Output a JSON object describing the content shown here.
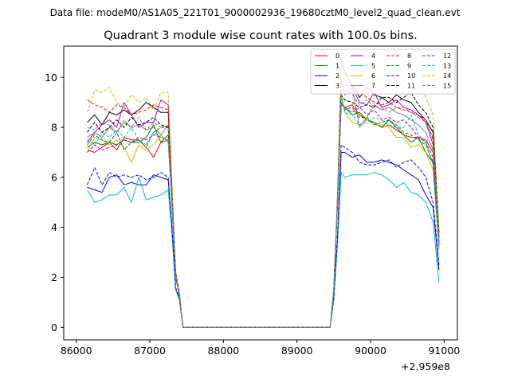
{
  "chart_data": {
    "type": "line",
    "supertitle": "Data file: modeM0/AS1A05_221T01_9000002936_19680cztM0_level2_quad_clean.evt",
    "title": "Quadrant 3 module wise count rates with 100.0s bins.",
    "xlabel": "",
    "ylabel": "",
    "x_offset_label": "+2.959e8",
    "x_ticks": [
      86000,
      87000,
      88000,
      89000,
      90000,
      91000
    ],
    "y_ticks": [
      0,
      2,
      4,
      6,
      8,
      10
    ],
    "xlim": [
      85830,
      91180
    ],
    "ylim": [
      -0.5,
      11.25
    ],
    "legend_loc": "upper right",
    "gaps": [
      [
        87400,
        89450
      ]
    ],
    "x": [
      86150,
      86250,
      86350,
      86450,
      86550,
      86650,
      86750,
      86850,
      86950,
      87050,
      87150,
      87250,
      87300,
      87350,
      87400,
      87450,
      89450,
      89500,
      89550,
      89600,
      89650,
      89750,
      89850,
      89950,
      90050,
      90150,
      90250,
      90350,
      90450,
      90550,
      90650,
      90750,
      90850,
      90930
    ],
    "series": [
      {
        "name": "0",
        "color": "#ff0000",
        "dash": false,
        "values": [
          7.1,
          7.0,
          7.2,
          7.4,
          7.1,
          7.6,
          7.5,
          7.5,
          7.2,
          6.8,
          7.4,
          7.5,
          5.0,
          2.0,
          1.3,
          0,
          0,
          1.5,
          5.0,
          8.9,
          8.8,
          8.9,
          8.5,
          8.3,
          8.2,
          8.0,
          8.1,
          7.9,
          7.7,
          7.6,
          7.6,
          7.5,
          7.0,
          3.3
        ]
      },
      {
        "name": "1",
        "color": "#008000",
        "dash": false,
        "values": [
          7.2,
          7.4,
          7.3,
          7.4,
          7.3,
          7.5,
          7.4,
          7.4,
          7.6,
          8.1,
          7.4,
          7.7,
          5.0,
          2.0,
          1.3,
          0,
          0,
          1.5,
          5.0,
          9.0,
          8.8,
          8.5,
          8.6,
          8.3,
          8.2,
          8.0,
          8.3,
          8.0,
          7.7,
          7.4,
          7.6,
          7.0,
          6.6,
          3.3
        ]
      },
      {
        "name": "2",
        "color": "#0000ff",
        "dash": false,
        "values": [
          5.6,
          5.5,
          5.4,
          6.0,
          6.1,
          5.7,
          5.8,
          5.7,
          5.7,
          6.1,
          6.0,
          5.9,
          4.0,
          1.5,
          1.2,
          0,
          0,
          1.2,
          3.5,
          7.0,
          7.0,
          6.8,
          6.9,
          6.6,
          6.6,
          6.7,
          6.6,
          6.5,
          6.3,
          6.1,
          5.9,
          5.3,
          4.8,
          2.3
        ]
      },
      {
        "name": "3",
        "color": "#000000",
        "dash": false,
        "values": [
          8.2,
          8.5,
          8.1,
          8.6,
          8.5,
          8.7,
          8.5,
          8.7,
          9.0,
          8.8,
          8.6,
          8.6,
          5.5,
          2.2,
          1.4,
          0,
          0,
          1.5,
          5.0,
          10.6,
          10.2,
          9.7,
          9.2,
          9.6,
          9.3,
          9.2,
          9.0,
          9.3,
          9.1,
          9.0,
          8.6,
          8.3,
          7.8,
          3.6
        ]
      },
      {
        "name": "4",
        "color": "#bf00bf",
        "dash": false,
        "values": [
          7.4,
          7.8,
          8.1,
          8.3,
          8.0,
          9.0,
          8.5,
          8.0,
          8.2,
          8.2,
          9.1,
          8.9,
          5.5,
          2.2,
          1.4,
          0,
          0,
          1.5,
          5.0,
          9.9,
          9.3,
          9.6,
          9.0,
          8.9,
          9.4,
          8.8,
          8.9,
          9.1,
          8.8,
          8.7,
          8.5,
          8.2,
          7.3,
          3.4
        ]
      },
      {
        "name": "5",
        "color": "#00bfbf",
        "dash": false,
        "values": [
          5.5,
          5.0,
          5.1,
          5.3,
          5.3,
          5.6,
          5.0,
          6.0,
          5.1,
          5.2,
          5.3,
          5.5,
          3.8,
          1.5,
          1.1,
          0,
          0,
          1.1,
          3.3,
          6.2,
          6.0,
          6.1,
          6.1,
          6.1,
          6.2,
          6.1,
          5.9,
          5.6,
          5.8,
          5.4,
          5.3,
          5.0,
          4.2,
          1.8
        ]
      },
      {
        "name": "6",
        "color": "#bfbf00",
        "dash": false,
        "values": [
          7.0,
          7.6,
          7.5,
          7.3,
          7.5,
          7.2,
          6.6,
          7.3,
          7.1,
          7.3,
          7.7,
          7.4,
          5.0,
          2.0,
          1.3,
          0,
          0,
          1.5,
          5.0,
          9.4,
          8.6,
          8.2,
          8.1,
          8.3,
          8.1,
          8.1,
          8.0,
          7.6,
          7.6,
          7.2,
          7.3,
          7.0,
          6.3,
          3.1
        ]
      },
      {
        "name": "7",
        "color": "#808080",
        "dash": false,
        "values": [
          7.6,
          7.8,
          7.6,
          8.0,
          7.8,
          8.2,
          8.0,
          8.1,
          7.9,
          8.0,
          7.7,
          8.1,
          5.3,
          2.1,
          1.3,
          0,
          0,
          1.5,
          5.0,
          10.7,
          10.3,
          9.6,
          8.0,
          8.4,
          8.9,
          8.7,
          8.8,
          8.6,
          8.5,
          8.3,
          8.1,
          7.8,
          7.1,
          3.4
        ]
      },
      {
        "name": "8",
        "color": "#ff0000",
        "dash": true,
        "values": [
          9.1,
          8.9,
          8.8,
          8.6,
          8.9,
          8.8,
          8.5,
          8.6,
          8.7,
          8.9,
          8.8,
          8.7,
          5.6,
          2.2,
          1.4,
          0,
          0,
          1.6,
          5.3,
          9.5,
          9.7,
          9.6,
          9.4,
          9.2,
          9.0,
          8.9,
          9.0,
          8.8,
          8.7,
          8.6,
          8.5,
          8.3,
          7.5,
          3.6
        ]
      },
      {
        "name": "9",
        "color": "#008000",
        "dash": true,
        "values": [
          7.3,
          7.7,
          7.5,
          7.4,
          7.8,
          7.1,
          7.4,
          7.5,
          7.2,
          7.8,
          8.0,
          8.0,
          5.2,
          2.0,
          1.3,
          0,
          0,
          1.5,
          5.0,
          9.2,
          8.7,
          8.8,
          8.4,
          8.4,
          8.1,
          8.2,
          8.3,
          8.1,
          7.8,
          7.7,
          7.5,
          7.3,
          6.6,
          3.2
        ]
      },
      {
        "name": "10",
        "color": "#0000ff",
        "dash": true,
        "values": [
          5.7,
          6.4,
          5.7,
          6.2,
          6.0,
          6.1,
          6.0,
          6.1,
          5.9,
          6.0,
          6.2,
          6.0,
          4.0,
          1.6,
          1.2,
          0,
          0,
          1.2,
          3.6,
          7.3,
          7.2,
          7.0,
          6.6,
          6.5,
          6.5,
          6.6,
          6.7,
          6.4,
          6.6,
          6.7,
          6.4,
          6.0,
          5.0,
          2.5
        ]
      },
      {
        "name": "11",
        "color": "#000000",
        "dash": true,
        "values": [
          7.8,
          8.2,
          7.8,
          8.0,
          8.3,
          8.0,
          8.4,
          8.1,
          8.2,
          8.4,
          8.1,
          8.0,
          5.3,
          2.1,
          1.3,
          0,
          0,
          1.5,
          5.0,
          9.3,
          9.1,
          9.0,
          8.8,
          8.9,
          8.8,
          9.2,
          9.2,
          9.0,
          9.2,
          9.4,
          8.9,
          8.6,
          8.0,
          3.8
        ]
      },
      {
        "name": "12",
        "color": "#bf00bf",
        "dash": true,
        "values": [
          7.0,
          7.3,
          7.1,
          7.2,
          7.3,
          7.5,
          7.4,
          7.6,
          7.5,
          7.7,
          7.6,
          7.5,
          5.0,
          2.0,
          1.3,
          0,
          0,
          1.5,
          5.0,
          9.0,
          8.8,
          8.6,
          8.8,
          8.5,
          8.7,
          8.3,
          8.4,
          8.2,
          8.3,
          8.0,
          7.6,
          7.4,
          6.8,
          3.3
        ]
      },
      {
        "name": "13",
        "color": "#00bfbf",
        "dash": true,
        "values": [
          7.5,
          7.3,
          7.8,
          7.6,
          7.9,
          7.6,
          8.0,
          7.5,
          7.3,
          7.8,
          7.6,
          7.5,
          5.0,
          2.0,
          1.3,
          0,
          0,
          1.5,
          5.0,
          9.3,
          8.6,
          8.5,
          8.1,
          8.2,
          8.4,
          8.3,
          8.1,
          8.0,
          8.0,
          8.5,
          7.7,
          7.4,
          6.5,
          3.2
        ]
      },
      {
        "name": "14",
        "color": "#bfbf00",
        "dash": true,
        "values": [
          8.6,
          9.5,
          9.4,
          9.6,
          9.0,
          8.8,
          9.3,
          9.0,
          9.2,
          8.7,
          9.4,
          9.4,
          6.0,
          2.3,
          1.4,
          0,
          0,
          1.6,
          5.5,
          10.5,
          10.2,
          10.0,
          10.2,
          10.3,
          10.1,
          9.9,
          9.8,
          10.0,
          9.6,
          9.4,
          9.7,
          9.2,
          8.5,
          3.9
        ]
      },
      {
        "name": "15",
        "color": "#808080",
        "dash": true,
        "values": [
          8.0,
          7.9,
          8.2,
          8.1,
          7.8,
          8.3,
          8.0,
          8.4,
          7.9,
          8.2,
          8.0,
          8.1,
          5.3,
          2.1,
          1.3,
          0,
          0,
          1.5,
          5.0,
          9.5,
          9.5,
          9.3,
          8.9,
          9.1,
          8.8,
          8.8,
          8.6,
          8.8,
          8.8,
          8.6,
          8.4,
          8.2,
          7.6,
          3.5
        ]
      }
    ]
  }
}
